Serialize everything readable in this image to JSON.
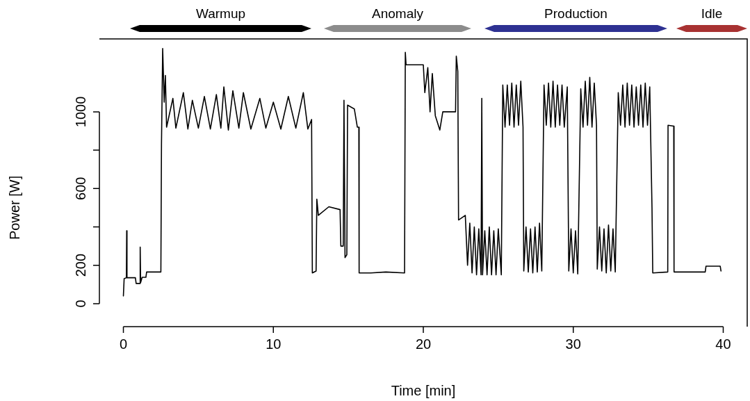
{
  "chart_data": {
    "type": "line",
    "xlabel": "Time [min]",
    "ylabel": "Power [W]",
    "xlim": [
      -1.6,
      41.6
    ],
    "ylim": [
      -120,
      1380
    ],
    "xticks": [
      0,
      10,
      20,
      30,
      40
    ],
    "yticks": [
      0,
      200,
      {
        "value": 400,
        "label": null
      },
      600,
      {
        "value": 800,
        "label": null
      },
      1000
    ],
    "legend": false,
    "marker": "none",
    "line_style": "solid",
    "annotations": [
      "Warmup",
      "Anomaly",
      "Production",
      "Idle"
    ],
    "series": [
      {
        "color": "#000000",
        "x": [
          0,
          0.05,
          0.2,
          0.22,
          0.24,
          0.8,
          0.85,
          1.1,
          1.12,
          1.15,
          1.25,
          1.5,
          1.55,
          2.5,
          2.54,
          2.62,
          2.72,
          2.8,
          2.88,
          3.3,
          3.5,
          4.0,
          4.3,
          4.6,
          5.0,
          5.4,
          5.8,
          6.2,
          6.5,
          6.7,
          7.0,
          7.3,
          7.7,
          8.0,
          8.5,
          9.1,
          9.5,
          10.0,
          10.5,
          11.0,
          11.5,
          12.0,
          12.3,
          12.55,
          12.6,
          12.85,
          12.9,
          13.0,
          13.7,
          14.45,
          14.5,
          14.66,
          14.71,
          14.78,
          14.9,
          14.95,
          15.4,
          15.6,
          15.7,
          15.72,
          16.5,
          17.5,
          18.75,
          18.8,
          18.85,
          20.0,
          20.1,
          20.3,
          20.45,
          20.6,
          20.8,
          21.1,
          21.3,
          22.15,
          22.2,
          22.3,
          22.35,
          22.8,
          22.95,
          23.1,
          23.25,
          23.4,
          23.55,
          23.7,
          23.85,
          23.9,
          23.95,
          24.1,
          24.25,
          24.4,
          24.55,
          24.7,
          24.85,
          25.0,
          25.2,
          25.3,
          25.45,
          25.6,
          25.75,
          25.9,
          26.05,
          26.2,
          26.35,
          26.5,
          26.65,
          26.7,
          26.85,
          27.0,
          27.15,
          27.3,
          27.45,
          27.6,
          27.75,
          27.9,
          28.05,
          28.2,
          28.35,
          28.5,
          28.65,
          28.8,
          28.95,
          29.1,
          29.25,
          29.4,
          29.6,
          29.7,
          29.85,
          30.0,
          30.15,
          30.3,
          30.5,
          30.65,
          30.8,
          30.95,
          31.1,
          31.25,
          31.4,
          31.55,
          31.6,
          31.75,
          31.9,
          32.05,
          32.2,
          32.35,
          32.5,
          32.65,
          32.8,
          33.0,
          33.15,
          33.3,
          33.45,
          33.6,
          33.75,
          33.9,
          34.05,
          34.2,
          34.35,
          34.5,
          34.65,
          34.8,
          34.95,
          35.1,
          35.25,
          35.3,
          36.3,
          36.32,
          36.7,
          36.72,
          38.8,
          38.85,
          39.8,
          39.85
        ],
        "values": [
          40,
          130,
          135,
          380,
          135,
          135,
          105,
          105,
          295,
          110,
          137,
          137,
          165,
          165,
          830,
          1330,
          1050,
          1190,
          920,
          1070,
          915,
          1100,
          910,
          1060,
          915,
          1080,
          910,
          1090,
          915,
          1130,
          905,
          1110,
          915,
          1100,
          910,
          1070,
          915,
          1050,
          910,
          1080,
          915,
          1100,
          910,
          960,
          160,
          170,
          545,
          460,
          505,
          490,
          300,
          300,
          1060,
          240,
          255,
          1035,
          1015,
          920,
          920,
          160,
          160,
          165,
          160,
          1310,
          1245,
          1245,
          1100,
          1230,
          1000,
          1200,
          980,
          905,
          1000,
          1000,
          1290,
          1210,
          436,
          460,
          200,
          420,
          160,
          400,
          150,
          390,
          150,
          1070,
          150,
          380,
          150,
          400,
          150,
          380,
          150,
          390,
          150,
          1140,
          920,
          1140,
          930,
          1150,
          920,
          1140,
          930,
          1160,
          920,
          170,
          400,
          165,
          390,
          160,
          400,
          165,
          420,
          170,
          1140,
          930,
          1150,
          920,
          1160,
          920,
          1140,
          930,
          1140,
          920,
          1130,
          170,
          390,
          160,
          380,
          155,
          1120,
          920,
          1160,
          930,
          1180,
          920,
          1150,
          930,
          180,
          400,
          170,
          390,
          160,
          410,
          170,
          390,
          165,
          1100,
          930,
          1140,
          920,
          1150,
          930,
          1140,
          920,
          1130,
          930,
          1140,
          920,
          1150,
          930,
          1130,
          500,
          160,
          165,
          930,
          925,
          165,
          165,
          195,
          195,
          170
        ]
      }
    ]
  }
}
